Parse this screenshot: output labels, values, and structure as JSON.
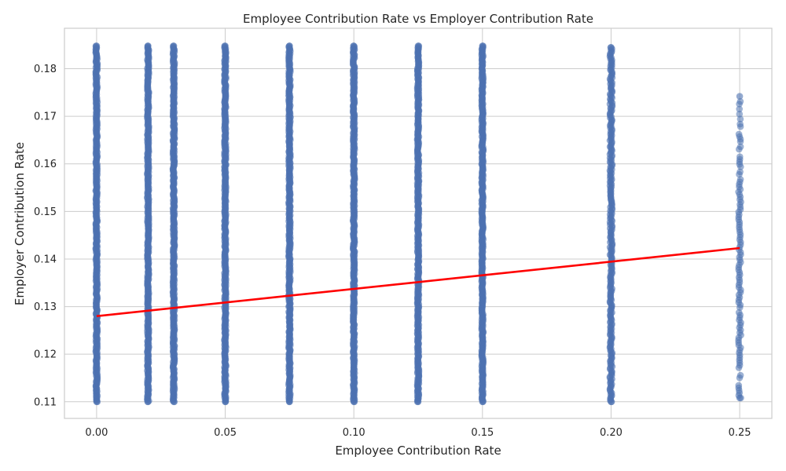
{
  "chart_data": {
    "type": "scatter",
    "title": "Employee Contribution Rate vs Employer Contribution Rate",
    "xlabel": "Employee Contribution Rate",
    "ylabel": "Employer Contribution Rate",
    "xlim": [
      -0.0125,
      0.2625
    ],
    "ylim": [
      0.1065,
      0.1885
    ],
    "x_ticks": [
      "0.00",
      "0.05",
      "0.10",
      "0.15",
      "0.20",
      "0.25"
    ],
    "y_ticks": [
      "0.11",
      "0.12",
      "0.13",
      "0.14",
      "0.15",
      "0.16",
      "0.17",
      "0.18"
    ],
    "grid": true,
    "legend": "none",
    "point_color": "#4c72b0",
    "line_color": "#ff0000",
    "point_columns": [
      {
        "x": 0.0,
        "y_min": 0.11,
        "y_max": 0.1848
      },
      {
        "x": 0.02,
        "y_min": 0.11,
        "y_max": 0.1848
      },
      {
        "x": 0.03,
        "y_min": 0.11,
        "y_max": 0.1848
      },
      {
        "x": 0.05,
        "y_min": 0.11,
        "y_max": 0.1848
      },
      {
        "x": 0.075,
        "y_min": 0.11,
        "y_max": 0.1848
      },
      {
        "x": 0.1,
        "y_min": 0.11,
        "y_max": 0.1848
      },
      {
        "x": 0.125,
        "y_min": 0.11,
        "y_max": 0.1848
      },
      {
        "x": 0.15,
        "y_min": 0.11,
        "y_max": 0.1848
      },
      {
        "x": 0.2,
        "y_min": 0.11,
        "y_max": 0.1845
      },
      {
        "x": 0.25,
        "y_min": 0.1108,
        "y_max": 0.1742
      }
    ],
    "regression_line": {
      "x": [
        0.0,
        0.25
      ],
      "y": [
        0.128,
        0.1423
      ]
    }
  }
}
